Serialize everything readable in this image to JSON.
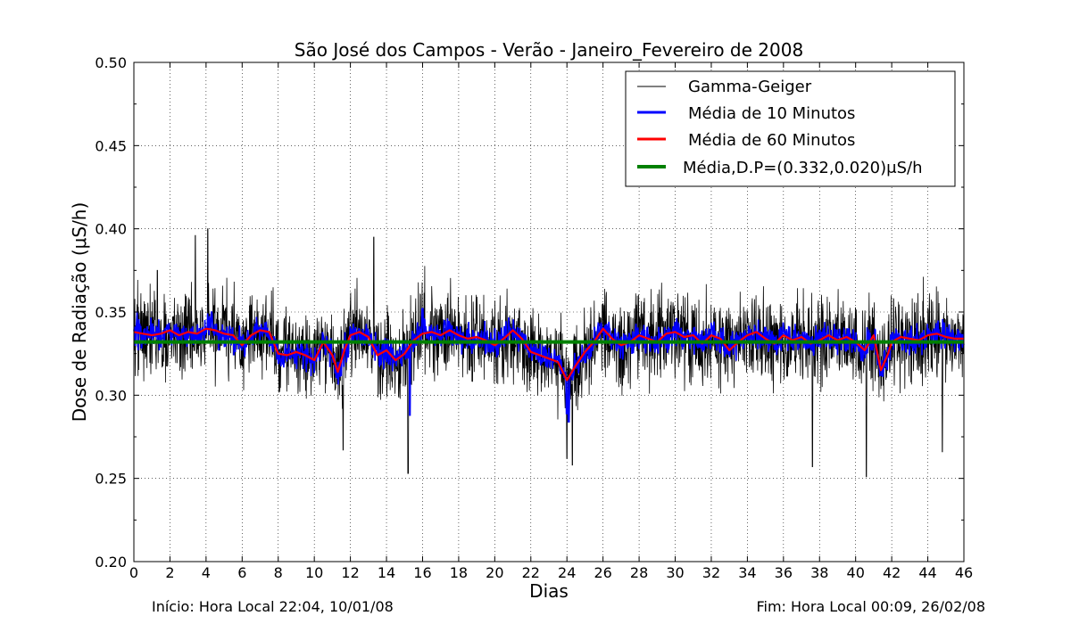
{
  "chart_data": {
    "type": "line",
    "title": "São José dos Campos - Verão - Janeiro_Fevereiro de 2008",
    "xlabel": "Dias",
    "ylabel": "Dose de Radiação (μS/h)",
    "xlim": [
      0,
      46
    ],
    "ylim": [
      0.2,
      0.5
    ],
    "x_ticks": [
      0,
      2,
      4,
      6,
      8,
      10,
      12,
      14,
      16,
      18,
      20,
      22,
      24,
      26,
      28,
      30,
      32,
      34,
      36,
      38,
      40,
      42,
      44,
      46
    ],
    "y_ticks": [
      0.2,
      0.25,
      0.3,
      0.35,
      0.4,
      0.45,
      0.5
    ],
    "y_tick_labels": [
      "0.20",
      "0.25",
      "0.30",
      "0.35",
      "0.40",
      "0.45",
      "0.50"
    ],
    "grid": true,
    "legend_position": "top-right",
    "series": [
      {
        "name": "Gamma-Geiger",
        "color": "#000000",
        "noise_amplitude": 0.02,
        "spikes": [
          [
            1.3,
            0.375
          ],
          [
            3.4,
            0.396
          ],
          [
            4.1,
            0.4
          ],
          [
            11.6,
            0.267
          ],
          [
            13.3,
            0.395
          ],
          [
            15.2,
            0.253
          ],
          [
            24.0,
            0.262
          ],
          [
            24.3,
            0.258
          ],
          [
            37.6,
            0.257
          ],
          [
            40.6,
            0.251
          ],
          [
            44.8,
            0.266
          ]
        ]
      },
      {
        "name": "Média de 10 Minutos",
        "color": "#0000ff",
        "noise_amplitude": 0.006,
        "spikes": [
          [
            15.3,
            0.288
          ],
          [
            24.1,
            0.284
          ],
          [
            24.0,
            0.289
          ],
          [
            41.4,
            0.312
          ],
          [
            4.3,
            0.35
          ],
          [
            16.0,
            0.352
          ]
        ]
      },
      {
        "name": "Média de 60 Minutos",
        "color": "#ff0000",
        "points": [
          [
            0,
            0.338
          ],
          [
            0.5,
            0.337
          ],
          [
            1,
            0.336
          ],
          [
            1.5,
            0.337
          ],
          [
            2,
            0.339
          ],
          [
            2.5,
            0.336
          ],
          [
            3,
            0.338
          ],
          [
            3.5,
            0.337
          ],
          [
            4,
            0.34
          ],
          [
            4.5,
            0.339
          ],
          [
            5,
            0.337
          ],
          [
            5.5,
            0.336
          ],
          [
            6,
            0.33
          ],
          [
            6.5,
            0.336
          ],
          [
            7,
            0.339
          ],
          [
            7.5,
            0.338
          ],
          [
            8,
            0.325
          ],
          [
            8.5,
            0.324
          ],
          [
            9,
            0.326
          ],
          [
            9.5,
            0.324
          ],
          [
            10,
            0.321
          ],
          [
            10.5,
            0.332
          ],
          [
            11,
            0.324
          ],
          [
            11.3,
            0.314
          ],
          [
            11.7,
            0.328
          ],
          [
            12,
            0.336
          ],
          [
            12.5,
            0.338
          ],
          [
            13,
            0.335
          ],
          [
            13.5,
            0.324
          ],
          [
            14,
            0.327
          ],
          [
            14.5,
            0.321
          ],
          [
            15,
            0.325
          ],
          [
            15.5,
            0.333
          ],
          [
            16,
            0.337
          ],
          [
            16.5,
            0.338
          ],
          [
            17,
            0.336
          ],
          [
            17.5,
            0.339
          ],
          [
            18,
            0.336
          ],
          [
            18.5,
            0.334
          ],
          [
            19,
            0.335
          ],
          [
            19.5,
            0.333
          ],
          [
            20,
            0.33
          ],
          [
            20.5,
            0.334
          ],
          [
            21,
            0.339
          ],
          [
            21.5,
            0.334
          ],
          [
            22,
            0.326
          ],
          [
            22.5,
            0.324
          ],
          [
            23,
            0.322
          ],
          [
            23.5,
            0.32
          ],
          [
            24,
            0.309
          ],
          [
            24.5,
            0.318
          ],
          [
            25,
            0.326
          ],
          [
            25.5,
            0.332
          ],
          [
            26,
            0.34
          ],
          [
            26.5,
            0.334
          ],
          [
            27,
            0.33
          ],
          [
            27.5,
            0.332
          ],
          [
            28,
            0.336
          ],
          [
            28.5,
            0.334
          ],
          [
            29,
            0.332
          ],
          [
            29.5,
            0.337
          ],
          [
            30,
            0.338
          ],
          [
            30.5,
            0.335
          ],
          [
            31,
            0.336
          ],
          [
            31.5,
            0.331
          ],
          [
            32,
            0.336
          ],
          [
            32.5,
            0.334
          ],
          [
            33,
            0.327
          ],
          [
            33.5,
            0.332
          ],
          [
            34,
            0.336
          ],
          [
            34.5,
            0.338
          ],
          [
            35,
            0.334
          ],
          [
            35.5,
            0.331
          ],
          [
            36,
            0.336
          ],
          [
            36.5,
            0.333
          ],
          [
            37,
            0.335
          ],
          [
            37.5,
            0.331
          ],
          [
            38,
            0.333
          ],
          [
            38.5,
            0.336
          ],
          [
            39,
            0.333
          ],
          [
            39.5,
            0.335
          ],
          [
            40,
            0.332
          ],
          [
            40.5,
            0.327
          ],
          [
            41,
            0.336
          ],
          [
            41.4,
            0.315
          ],
          [
            41.8,
            0.325
          ],
          [
            42,
            0.332
          ],
          [
            42.5,
            0.335
          ],
          [
            43,
            0.334
          ],
          [
            43.5,
            0.333
          ],
          [
            44,
            0.336
          ],
          [
            44.5,
            0.337
          ],
          [
            45,
            0.335
          ],
          [
            45.5,
            0.334
          ],
          [
            46,
            0.334
          ]
        ]
      },
      {
        "name": "Média,D.P=(0.332,0.020)μS/h",
        "color": "#008000",
        "constant": 0.332
      }
    ]
  },
  "footer": {
    "start": "Início: Hora Local 22:04, 10/01/08",
    "end": "Fim: Hora Local 00:09, 26/02/08"
  }
}
